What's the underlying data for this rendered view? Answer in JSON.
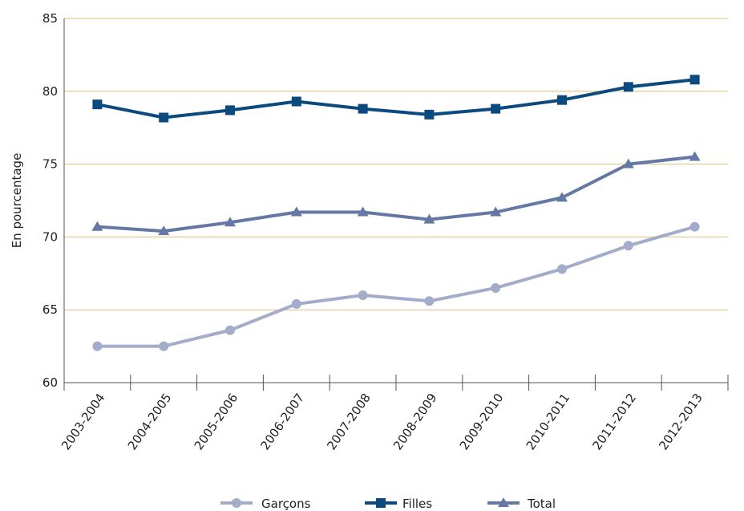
{
  "chart_data": {
    "type": "line",
    "title": "",
    "xlabel": "",
    "ylabel": "En pourcentage",
    "ylim": [
      60,
      85
    ],
    "yticks": [
      60,
      65,
      70,
      75,
      80,
      85
    ],
    "grid": "horizontal",
    "legend_position": "bottom-center",
    "categories": [
      "2003-2004",
      "2004-2005",
      "2005-2006",
      "2006-2007",
      "2007-2008",
      "2008-2009",
      "2009-2010",
      "2010-2011",
      "2011-2012",
      "2012-2013"
    ],
    "series": [
      {
        "name": "Garçons",
        "marker": "circle",
        "color": "#a3acc9",
        "values": [
          62.5,
          62.5,
          63.6,
          65.4,
          66.0,
          65.6,
          66.5,
          67.8,
          69.4,
          70.7
        ]
      },
      {
        "name": "Filles",
        "marker": "square",
        "color": "#0b4a7e",
        "values": [
          79.1,
          78.2,
          78.7,
          79.3,
          78.8,
          78.4,
          78.8,
          79.4,
          80.3,
          80.8
        ]
      },
      {
        "name": "Total",
        "marker": "triangle",
        "color": "#6577a4",
        "values": [
          70.7,
          70.4,
          71.0,
          71.7,
          71.7,
          71.2,
          71.7,
          72.7,
          75.0,
          75.5
        ]
      }
    ],
    "colors": {
      "grid": "#d9bf7a",
      "axis": "#555555"
    }
  }
}
